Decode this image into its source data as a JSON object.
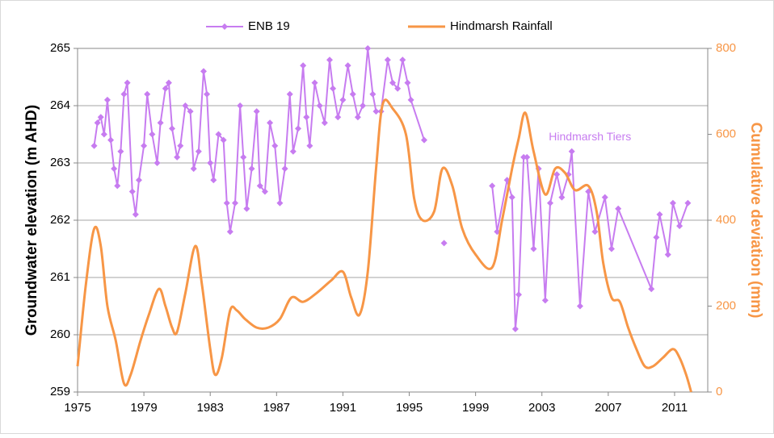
{
  "chart_data": {
    "type": "line",
    "ylabel": "Groundwater elevation (m AHD)",
    "y2label": "Cumulative deviation (mm)",
    "annotation": "Hindmarsh Tiers",
    "xlim": [
      1975,
      2013
    ],
    "xticks": [
      1975,
      1979,
      1983,
      1987,
      1991,
      1995,
      1999,
      2003,
      2007,
      2011
    ],
    "ylim": [
      259,
      265
    ],
    "yticks": [
      259,
      260,
      261,
      262,
      263,
      264,
      265
    ],
    "y2lim": [
      0,
      800
    ],
    "y2ticks": [
      0,
      200,
      400,
      600,
      800
    ],
    "grid": true,
    "legend": "top",
    "series": [
      {
        "name": "ENB 19",
        "color": "#c77cf0",
        "axis": "y",
        "markers": true,
        "smooth": false,
        "x": [
          1976.0,
          1976.2,
          1976.4,
          1976.6,
          1976.8,
          1977.0,
          1977.2,
          1977.4,
          1977.6,
          1977.8,
          1978.0,
          1978.3,
          1978.5,
          1978.7,
          1979.0,
          1979.2,
          1979.5,
          1979.8,
          1980.0,
          1980.3,
          1980.5,
          1980.7,
          1981.0,
          1981.2,
          1981.5,
          1981.8,
          1982.0,
          1982.3,
          1982.6,
          1982.8,
          1983.0,
          1983.2,
          1983.5,
          1983.8,
          1984.0,
          1984.2,
          1984.5,
          1984.8,
          1985.0,
          1985.2,
          1985.5,
          1985.8,
          1986.0,
          1986.3,
          1986.6,
          1986.9,
          1987.2,
          1987.5,
          1987.8,
          1988.0,
          1988.3,
          1988.6,
          1988.8,
          1989.0,
          1989.3,
          1989.6,
          1989.9,
          1990.2,
          1990.4,
          1990.7,
          1991.0,
          1991.3,
          1991.6,
          1991.9,
          1992.2,
          1992.5,
          1992.8,
          1993.0,
          1993.3,
          1993.7,
          1994.0,
          1994.3,
          1994.6,
          1994.9,
          1995.1,
          1995.9,
          null,
          1997.1,
          null,
          2000.0,
          2000.3,
          2000.9,
          2001.2,
          2001.4,
          2001.6,
          2001.9,
          2002.1,
          2002.5,
          2002.8,
          2003.2,
          2003.5,
          2003.9,
          2004.2,
          2004.6,
          2004.8,
          2005.3,
          2005.8,
          2006.2,
          2006.8,
          2007.2,
          2007.6,
          2009.6,
          2009.9,
          2010.1,
          2010.6,
          2010.9,
          2011.3,
          2011.8
        ],
        "values": [
          263.3,
          263.7,
          263.8,
          263.5,
          264.1,
          263.4,
          262.9,
          262.6,
          263.2,
          264.2,
          264.4,
          262.5,
          262.1,
          262.7,
          263.3,
          264.2,
          263.5,
          263.0,
          263.7,
          264.3,
          264.4,
          263.6,
          263.1,
          263.3,
          264.0,
          263.9,
          262.9,
          263.2,
          264.6,
          264.2,
          263.0,
          262.7,
          263.5,
          263.4,
          262.3,
          261.8,
          262.3,
          264.0,
          263.1,
          262.2,
          262.9,
          263.9,
          262.6,
          262.5,
          263.7,
          263.3,
          262.3,
          262.9,
          264.2,
          263.2,
          263.6,
          264.7,
          263.8,
          263.3,
          264.4,
          264.0,
          263.7,
          264.8,
          264.3,
          263.8,
          264.1,
          264.7,
          264.2,
          263.8,
          264.0,
          265.0,
          264.2,
          263.9,
          263.9,
          264.8,
          264.4,
          264.3,
          264.8,
          264.4,
          264.1,
          263.4,
          null,
          261.6,
          null,
          262.6,
          261.8,
          262.7,
          262.4,
          260.1,
          260.7,
          263.1,
          263.1,
          261.5,
          262.9,
          260.6,
          262.3,
          262.8,
          262.4,
          262.8,
          263.2,
          260.5,
          262.5,
          261.8,
          262.4,
          261.5,
          262.2,
          260.8,
          261.7,
          262.1,
          261.4,
          262.3,
          261.9,
          262.3
        ]
      },
      {
        "name": "Hindmarsh Rainfall",
        "color": "#f79646",
        "axis": "y2",
        "markers": false,
        "smooth": true,
        "x": [
          1975.0,
          1975.5,
          1976.0,
          1976.4,
          1976.8,
          1977.3,
          1977.8,
          1978.2,
          1978.8,
          1979.3,
          1979.9,
          1980.3,
          1980.7,
          1981.0,
          1981.5,
          1982.1,
          1982.5,
          1983.0,
          1983.3,
          1983.7,
          1984.2,
          1984.6,
          1985.1,
          1985.8,
          1986.5,
          1987.2,
          1987.9,
          1988.6,
          1989.4,
          1990.3,
          1991.0,
          1991.5,
          1992.0,
          1992.5,
          1993.0,
          1993.4,
          1994.0,
          1994.8,
          1995.3,
          1995.8,
          1996.5,
          1997.0,
          1997.6,
          1998.2,
          1999.0,
          2000.0,
          2000.6,
          2001.2,
          2001.6,
          2002.0,
          2002.5,
          2003.2,
          2003.8,
          2004.4,
          2005.0,
          2005.8,
          2006.3,
          2006.7,
          2007.2,
          2007.7,
          2008.2,
          2008.7,
          2009.2,
          2009.7,
          2010.3,
          2010.9,
          2011.3,
          2011.7,
          2012.0
        ],
        "values": [
          60,
          250,
          380,
          340,
          200,
          120,
          20,
          40,
          120,
          180,
          240,
          200,
          150,
          140,
          230,
          340,
          250,
          100,
          40,
          80,
          190,
          190,
          170,
          150,
          150,
          170,
          220,
          210,
          230,
          260,
          280,
          220,
          180,
          280,
          520,
          670,
          660,
          600,
          450,
          400,
          420,
          520,
          480,
          380,
          320,
          290,
          400,
          520,
          590,
          650,
          560,
          460,
          520,
          510,
          470,
          480,
          420,
          300,
          220,
          210,
          150,
          100,
          60,
          60,
          80,
          100,
          80,
          40,
          0
        ]
      }
    ]
  }
}
